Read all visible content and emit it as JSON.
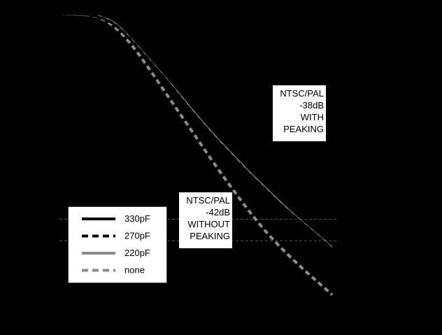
{
  "chart_data": {
    "type": "line",
    "title": "",
    "xlabel": "",
    "ylabel": "",
    "xlim": [
      0,
      100
    ],
    "ylim": [
      -50,
      0
    ],
    "grid": false,
    "legend_placement": "lower-left",
    "colors": {
      "background": "#000000",
      "dark_series": "#000000",
      "light_series": "#8c8c8c",
      "label_box": "#ffffff",
      "reference_line": "#555555"
    },
    "reference_lines": [
      {
        "y": -38
      },
      {
        "y": -42
      }
    ],
    "annotations": [
      {
        "lines": [
          "NTSC/PAL",
          "-38dB",
          "WITH",
          "PEAKING"
        ]
      },
      {
        "lines": [
          "NTSC/PAL",
          "-42dB",
          "WITHOUT",
          "PEAKING"
        ]
      }
    ],
    "series": [
      {
        "name": "330pF",
        "color": "#000000",
        "dash": "solid",
        "x": [
          0,
          8,
          14,
          20,
          26,
          32,
          38,
          44,
          50,
          56,
          62,
          68,
          74,
          80,
          86,
          92,
          98
        ],
        "y": [
          0,
          0,
          -0.5,
          -2,
          -5,
          -8.5,
          -12,
          -15.8,
          -19.5,
          -23,
          -26.3,
          -29.5,
          -32.5,
          -35.5,
          -38.2,
          -40.8,
          -43.5
        ]
      },
      {
        "name": "270pF",
        "color": "#000000",
        "dash": "dashed",
        "x": [
          0,
          8,
          14,
          20,
          26,
          32,
          38,
          44,
          50,
          56,
          62,
          68,
          74,
          80,
          86,
          92,
          98
        ],
        "y": [
          0,
          0,
          -0.5,
          -2,
          -5,
          -8.5,
          -12,
          -15.8,
          -19.5,
          -23,
          -26.3,
          -29.5,
          -32.5,
          -35.5,
          -38.2,
          -40.8,
          -43.5
        ]
      },
      {
        "name": "220pF",
        "color": "#8c8c8c",
        "dash": "solid",
        "x": [
          0,
          8,
          14,
          20,
          26,
          32,
          38,
          44,
          50,
          56,
          62,
          68,
          74,
          80,
          86,
          92,
          98
        ],
        "y": [
          0,
          -0.1,
          -0.4,
          -1.8,
          -4.8,
          -8.3,
          -11.8,
          -15.5,
          -19.2,
          -22.7,
          -26,
          -29.2,
          -32.2,
          -35.2,
          -38,
          -40.6,
          -43.3
        ]
      },
      {
        "name": "none",
        "color": "#8c8c8c",
        "dash": "dashed",
        "x": [
          0,
          8,
          14,
          20,
          26,
          32,
          38,
          44,
          50,
          56,
          62,
          68,
          74,
          80,
          86,
          92,
          98
        ],
        "y": [
          0,
          -0.1,
          -0.6,
          -2.5,
          -5.8,
          -10,
          -14.5,
          -19,
          -23.5,
          -28,
          -32.3,
          -36.4,
          -40.2,
          -43.5,
          -46.5,
          -49.3,
          -52
        ]
      }
    ]
  }
}
